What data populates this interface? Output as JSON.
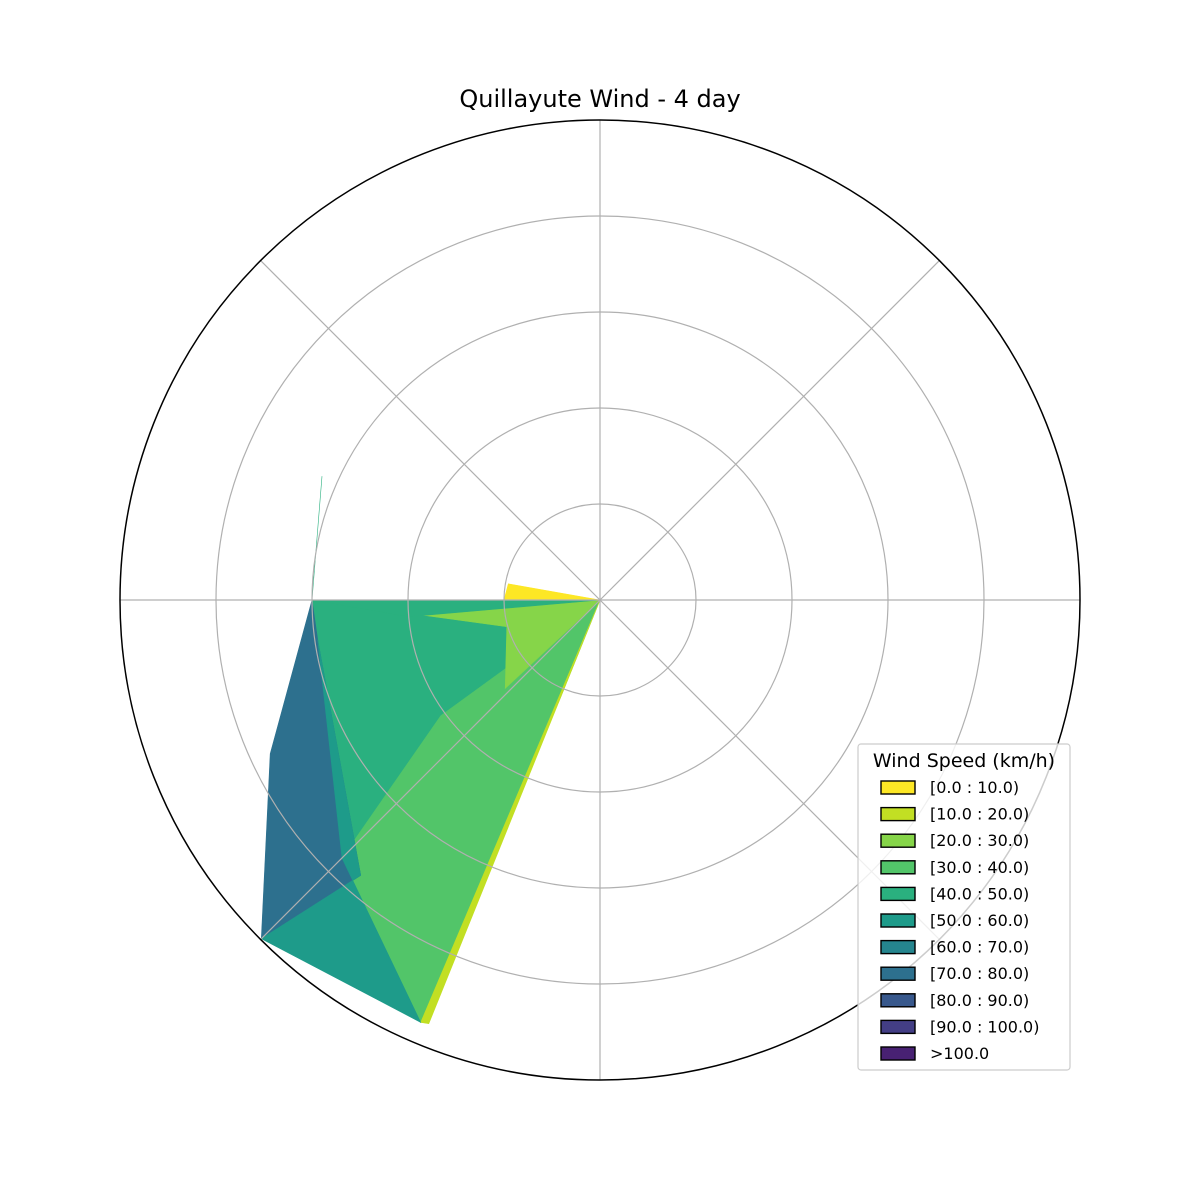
{
  "chart_data": {
    "type": "windrose",
    "title": "Quillayute Wind - 4 day",
    "directions_deg": [
      0,
      45,
      90,
      135,
      180,
      225,
      270,
      315
    ],
    "direction_note_unused": "",
    "radial_grid": [
      1,
      2,
      3,
      4,
      5
    ],
    "rmax": 5,
    "grid": true,
    "legend": {
      "title": "Wind Speed (km/h)",
      "placement": "lower-right",
      "bins": [
        "[0.0 : 10.0)",
        "[10.0 : 20.0)",
        "[20.0 : 30.0)",
        "[30.0 : 40.0)",
        "[40.0 : 50.0)",
        "[50.0 : 60.0)",
        "[60.0 : 70.0)",
        "[70.0 : 80.0)",
        "[80.0 : 90.0)",
        "[90.0 : 100.0)",
        ">100.0"
      ],
      "colors": [
        "#fde725",
        "#c2df23",
        "#86d549",
        "#52c569",
        "#2ab07f",
        "#1e9b8a",
        "#25858e",
        "#2d708e",
        "#38588c",
        "#433e85",
        "#482173"
      ]
    },
    "series_cumulative": [
      [
        0,
        0,
        0,
        0,
        0,
        0,
        0,
        0
      ],
      [
        0,
        0,
        0,
        0,
        0,
        0,
        0,
        0
      ],
      [
        0,
        0,
        0,
        0,
        0,
        0,
        0,
        0
      ],
      [
        0,
        0,
        0,
        0,
        0,
        0,
        0,
        0
      ],
      [
        0,
        0,
        0,
        0,
        0,
        0,
        0,
        0
      ],
      [
        0,
        0,
        0,
        0,
        0,
        0,
        0,
        0
      ],
      [
        0,
        0,
        0,
        0,
        0,
        0,
        0,
        0
      ],
      [
        0,
        0,
        0,
        0,
        0,
        0,
        0,
        0
      ],
      [
        0,
        0,
        0,
        0,
        0,
        0,
        0,
        0
      ],
      [
        0,
        0,
        0,
        0,
        0,
        0,
        0,
        0
      ],
      [
        0,
        0,
        0,
        0,
        0,
        0,
        0,
        0
      ]
    ],
    "petal_vertices_deg_r": {
      "note": "",
      "petals": [
        {
          "bin": 0,
          "pts": [
            [
              0,
              0
            ],
            [
              270,
              1
            ],
            [
              241,
              0
            ]
          ]
        },
        {
          "bin": 2,
          "pts": [
            [
              0,
              0
            ],
            [
              270,
              3
            ],
            [
              259,
              1
            ],
            [
              241,
              1
            ],
            [
              270,
              1
            ]
          ]
        },
        {
          "bin": 4,
          "pts": [
            [
              0,
              0
            ],
            [
              270,
              3
            ],
            [
              297,
              3
            ],
            [
              270,
              3
            ],
            [
              259,
              1
            ],
            [
              241,
              1
            ],
            [
              241,
              3
            ],
            [
              225,
              3
            ],
            [
              241,
              1
            ]
          ]
        },
        {
          "bin": 3,
          "pts": [
            [
              0,
              0
            ],
            [
              241,
              1
            ],
            [
              225,
              3
            ],
            [
              202,
              5
            ],
            [
              202,
              0
            ]
          ]
        },
        {
          "bin": 5,
          "pts": [
            [
              0,
              0
            ],
            [
              241,
              3
            ],
            [
              225,
              5
            ],
            [
              202,
              5
            ],
            [
              225,
              3
            ]
          ]
        },
        {
          "bin": 7,
          "pts": [
            [
              0,
              0
            ],
            [
              259,
              3
            ],
            [
              243,
              4
            ],
            [
              225,
              5
            ],
            [
              241,
              3
            ]
          ]
        }
      ]
    }
  }
}
